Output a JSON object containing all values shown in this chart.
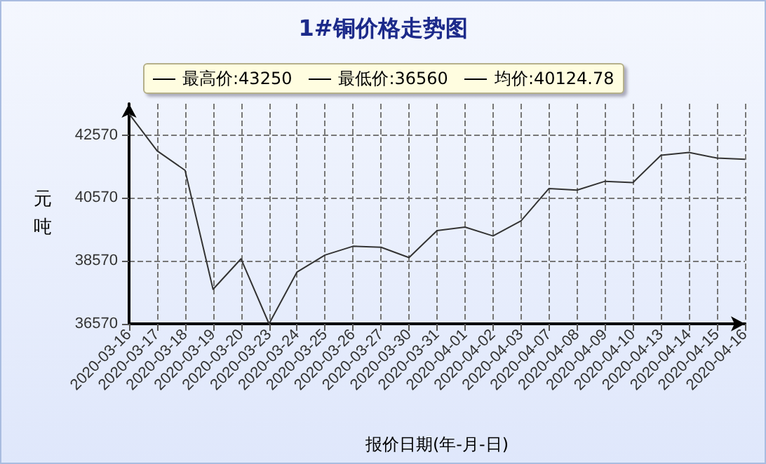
{
  "chart_data": {
    "type": "line",
    "title": "1#铜价格走势图",
    "xlabel": "报价日期(年-月-日)",
    "ylabel": "元吨",
    "annotations": [
      "最高价:43250",
      "最低价:36560",
      "均价:40124.78"
    ],
    "categories": [
      "2020-03-16",
      "2020-03-17",
      "2020-03-18",
      "2020-03-19",
      "2020-03-20",
      "2020-03-23",
      "2020-03-24",
      "2020-03-25",
      "2020-03-26",
      "2020-03-27",
      "2020-03-30",
      "2020-03-31",
      "2020-04-01",
      "2020-04-02",
      "2020-04-03",
      "2020-04-07",
      "2020-04-08",
      "2020-04-09",
      "2020-04-10",
      "2020-04-13",
      "2020-04-14",
      "2020-04-15",
      "2020-04-16"
    ],
    "series": [
      {
        "color": "#333333",
        "values": [
          43250,
          42070,
          41450,
          37660,
          38630,
          36560,
          38210,
          38750,
          39030,
          39000,
          38670,
          39530,
          39640,
          39360,
          39840,
          40870,
          40820,
          41100,
          41060,
          41930,
          42020,
          41840,
          41800
        ]
      }
    ],
    "ylim": [
      36560,
      43570
    ],
    "yticks": [
      36570,
      38570,
      40570,
      42570
    ],
    "grid": true,
    "marker": "none",
    "line_style": "solid"
  }
}
